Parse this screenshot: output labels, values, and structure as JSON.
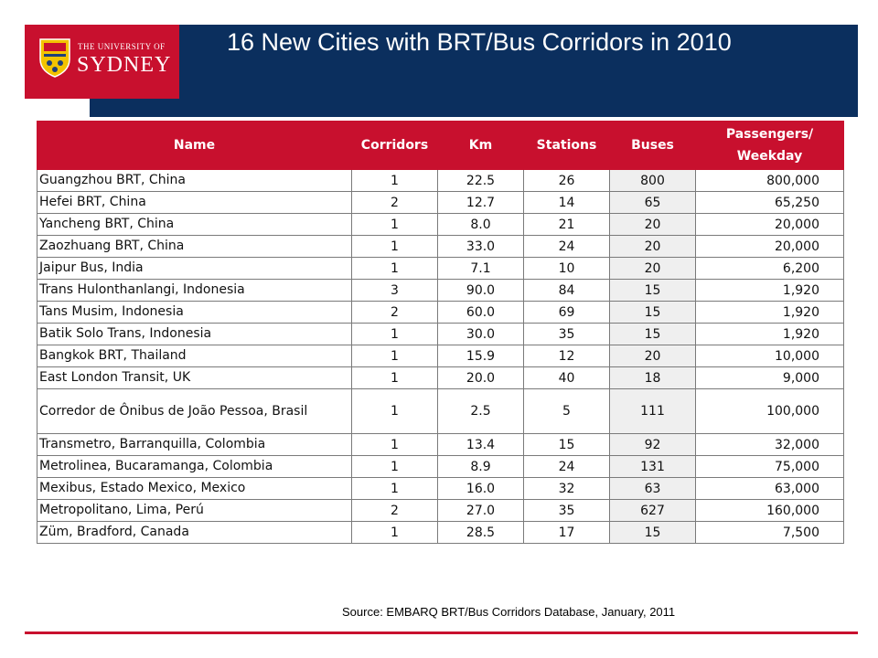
{
  "logo": {
    "line1": "THE UNIVERSITY OF",
    "line2": "SYDNEY"
  },
  "title": "16 New Cities with BRT/Bus Corridors in 2010",
  "table": {
    "headers": [
      "Name",
      "Corridors",
      "Km",
      "Stations",
      "Buses",
      "Passengers/ Weekday"
    ],
    "rows": [
      [
        "Guangzhou BRT, China",
        "1",
        "22.5",
        "26",
        "800",
        "800,000"
      ],
      [
        "Hefei BRT,  China",
        "2",
        "12.7",
        "14",
        "65",
        "65,250"
      ],
      [
        "Yancheng BRT, China",
        "1",
        "8.0",
        "21",
        "20",
        "20,000"
      ],
      [
        "Zaozhuang BRT, China",
        "1",
        "33.0",
        "24",
        "20",
        "20,000"
      ],
      [
        "Jaipur Bus, India",
        "1",
        "7.1",
        "10",
        "20",
        "6,200"
      ],
      [
        "Trans Hulonthanlangi, Indonesia",
        "3",
        "90.0",
        "84",
        "15",
        "1,920"
      ],
      [
        "Tans Musim, Indonesia",
        "2",
        "60.0",
        "69",
        "15",
        "1,920"
      ],
      [
        "Batik Solo Trans, Indonesia",
        "1",
        "30.0",
        "35",
        "15",
        "1,920"
      ],
      [
        "Bangkok BRT, Thailand",
        "1",
        "15.9",
        "12",
        "20",
        "10,000"
      ],
      [
        "East London Transit, UK",
        "1",
        "20.0",
        "40",
        "18",
        "9,000"
      ],
      [
        "Corredor de Ônibus de João Pessoa, Brasil",
        "1",
        "2.5",
        "5",
        "111",
        "100,000"
      ],
      [
        "Transmetro, Barranquilla, Colombia",
        "1",
        "13.4",
        "15",
        "92",
        "32,000"
      ],
      [
        "Metrolinea, Bucaramanga, Colombia",
        "1",
        "8.9",
        "24",
        "131",
        "75,000"
      ],
      [
        "Mexibus, Estado Mexico, Mexico",
        "1",
        "16.0",
        "32",
        "63",
        "63,000"
      ],
      [
        "Metropolitano, Lima, Perú",
        "2",
        "27.0",
        "35",
        "627",
        "160,000"
      ],
      [
        "Züm, Bradford, Canada",
        "1",
        "28.5",
        "17",
        "15",
        "7,500"
      ]
    ]
  },
  "source": "Source: EMBARQ BRT/Bus Corridors Database, January, 2011",
  "colors": {
    "navy": "#0b2f5e",
    "red": "#c8102e"
  }
}
